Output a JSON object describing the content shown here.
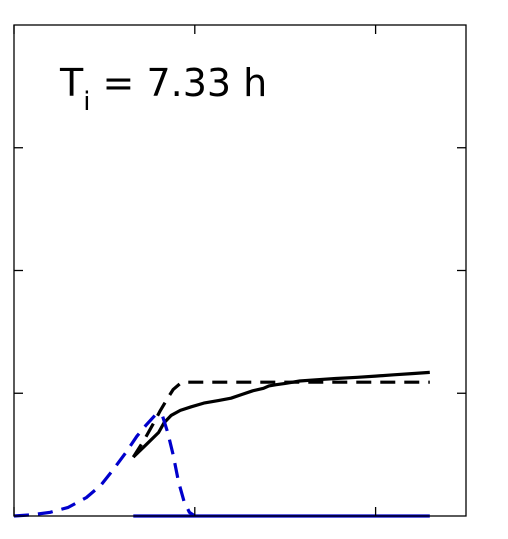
{
  "chart_data": {
    "type": "line",
    "annotation": {
      "main": "T",
      "sub": "i",
      "rest": " = 7.33 h"
    },
    "xlim": [
      0,
      25
    ],
    "ylim": [
      0,
      4
    ],
    "x_ticks": [
      0,
      10,
      20
    ],
    "y_ticks": [
      1,
      2,
      3
    ],
    "grid": false,
    "legend": "none",
    "series": [
      {
        "color": "#000000",
        "style": "solid",
        "x": [
          6.6,
          7.3,
          8.0,
          8.3,
          8.7,
          9.2,
          9.8,
          10.5,
          11.3,
          12.0,
          12.6,
          13.2,
          13.8,
          14.1,
          14.5,
          15.0,
          15.8,
          16.8,
          17.8,
          19.0,
          20.0,
          21.0,
          22.0,
          23.0
        ],
        "y": [
          0.48,
          0.58,
          0.68,
          0.76,
          0.82,
          0.86,
          0.89,
          0.92,
          0.94,
          0.96,
          0.99,
          1.02,
          1.04,
          1.06,
          1.07,
          1.08,
          1.1,
          1.11,
          1.12,
          1.13,
          1.14,
          1.15,
          1.16,
          1.17
        ]
      },
      {
        "color": "#000000",
        "style": "dashed",
        "x": [
          6.6,
          7.2,
          7.7,
          8.1,
          8.5,
          8.8,
          9.2,
          9.5,
          10.5,
          15.0,
          20.0,
          23.0
        ],
        "y": [
          0.48,
          0.62,
          0.75,
          0.86,
          0.96,
          1.03,
          1.08,
          1.09,
          1.09,
          1.09,
          1.09,
          1.09
        ]
      },
      {
        "color": "#0000cc",
        "style": "dashed",
        "x": [
          0.0,
          1.0,
          2.0,
          3.0,
          4.0,
          4.8,
          5.5,
          6.2,
          6.8,
          7.3,
          7.8,
          8.2,
          8.5,
          8.8,
          9.1,
          9.4,
          9.7,
          10.0
        ],
        "y": [
          0.0,
          0.01,
          0.03,
          0.07,
          0.15,
          0.25,
          0.38,
          0.52,
          0.65,
          0.74,
          0.82,
          0.82,
          0.68,
          0.5,
          0.28,
          0.12,
          0.03,
          0.0
        ]
      },
      {
        "color": "#0000cc",
        "style": "solid",
        "x": [
          6.6,
          23.0
        ],
        "y": [
          0.0,
          0.0
        ]
      }
    ]
  }
}
